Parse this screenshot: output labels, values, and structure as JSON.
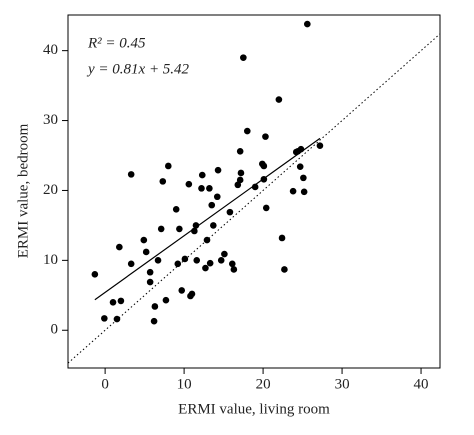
{
  "chart_data": {
    "type": "scatter",
    "xlabel": "ERMI value, living room",
    "ylabel": "ERMI value, bedroom",
    "annotations": [
      "R² = 0.45",
      "y = 0.81x + 5.42"
    ],
    "xlim": [
      -4.7,
      42.4
    ],
    "ylim": [
      -5.4,
      45.1
    ],
    "xticks": [
      0,
      10,
      20,
      30,
      40
    ],
    "yticks": [
      0,
      10,
      20,
      30,
      40
    ],
    "color": "#000000",
    "x": [
      -1.3,
      -0.1,
      1.0,
      1.5,
      1.8,
      2.0,
      3.3,
      3.3,
      4.9,
      5.2,
      5.7,
      5.7,
      6.2,
      6.3,
      6.7,
      7.1,
      7.3,
      7.7,
      8.0,
      9.0,
      9.2,
      9.4,
      9.7,
      10.1,
      10.6,
      10.8,
      11.0,
      11.3,
      11.5,
      11.6,
      12.2,
      12.3,
      12.7,
      12.9,
      13.2,
      13.3,
      13.5,
      13.7,
      14.3,
      14.2,
      14.7,
      15.1,
      15.8,
      16.1,
      16.3,
      16.8,
      17.1,
      17.1,
      17.2,
      17.5,
      18.0,
      19.0,
      19.9,
      20.1,
      20.1,
      20.3,
      20.4,
      22.0,
      22.4,
      22.7,
      23.8,
      24.2,
      24.4,
      24.8,
      24.7,
      25.1,
      25.2,
      25.6,
      27.2
    ],
    "values": [
      8.0,
      1.7,
      4.0,
      1.6,
      11.9,
      4.2,
      22.3,
      9.5,
      12.9,
      11.2,
      8.3,
      6.9,
      1.3,
      3.4,
      10.0,
      14.5,
      21.3,
      4.3,
      23.5,
      17.3,
      9.5,
      14.5,
      5.7,
      10.2,
      20.9,
      4.9,
      5.2,
      14.2,
      15.0,
      10.0,
      20.3,
      22.2,
      8.9,
      12.9,
      20.3,
      9.6,
      17.9,
      15.0,
      22.9,
      19.1,
      10.0,
      10.9,
      16.9,
      9.5,
      8.7,
      20.8,
      21.5,
      25.6,
      22.5,
      39.0,
      28.5,
      20.5,
      23.8,
      23.5,
      21.6,
      27.7,
      17.5,
      33.0,
      13.2,
      8.7,
      19.9,
      25.5,
      25.6,
      25.9,
      23.4,
      21.8,
      19.8,
      43.8,
      26.4
    ],
    "fit_line": {
      "x": [
        -1.3,
        27.2
      ],
      "y": [
        4.37,
        27.45
      ]
    }
  }
}
